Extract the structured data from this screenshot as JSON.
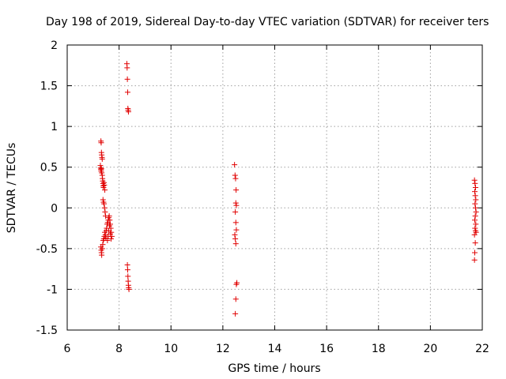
{
  "chart_data": {
    "type": "scatter",
    "title": "Day 198 of 2019, Sidereal Day-to-day VTEC variation (SDTVAR) for receiver ters",
    "xlabel": "GPS time / hours",
    "ylabel": "SDTVAR / TECUs",
    "xlim": [
      6,
      22
    ],
    "ylim": [
      -1.5,
      2
    ],
    "xticks": [
      "6",
      "8",
      "10",
      "12",
      "14",
      "16",
      "18",
      "20",
      "22"
    ],
    "yticks": [
      "2",
      "1.5",
      "1",
      "0.5",
      "0",
      "-0.5",
      "-1",
      "-1.5"
    ],
    "grid": true,
    "marker": "+",
    "marker_color": "#e00000",
    "series": [
      {
        "name": "SDTVAR",
        "points": [
          [
            7.3,
            0.82
          ],
          [
            7.31,
            0.8
          ],
          [
            7.32,
            0.68
          ],
          [
            7.33,
            0.65
          ],
          [
            7.34,
            0.62
          ],
          [
            7.35,
            0.6
          ],
          [
            7.28,
            0.52
          ],
          [
            7.29,
            0.49
          ],
          [
            7.3,
            0.47
          ],
          [
            7.31,
            0.45
          ],
          [
            7.32,
            0.48
          ],
          [
            7.33,
            0.43
          ],
          [
            7.35,
            0.4
          ],
          [
            7.36,
            0.36
          ],
          [
            7.37,
            0.33
          ],
          [
            7.38,
            0.3
          ],
          [
            7.39,
            0.27
          ],
          [
            7.4,
            0.25
          ],
          [
            7.42,
            0.31
          ],
          [
            7.43,
            0.28
          ],
          [
            7.45,
            0.22
          ],
          [
            7.38,
            0.1
          ],
          [
            7.4,
            0.07
          ],
          [
            7.42,
            0.05
          ],
          [
            7.44,
            0.0
          ],
          [
            7.46,
            -0.05
          ],
          [
            7.48,
            -0.1
          ],
          [
            7.3,
            -0.48
          ],
          [
            7.31,
            -0.52
          ],
          [
            7.32,
            -0.55
          ],
          [
            7.33,
            -0.58
          ],
          [
            7.35,
            -0.5
          ],
          [
            7.37,
            -0.45
          ],
          [
            7.39,
            -0.4
          ],
          [
            7.41,
            -0.38
          ],
          [
            7.43,
            -0.35
          ],
          [
            7.45,
            -0.3
          ],
          [
            7.47,
            -0.33
          ],
          [
            7.49,
            -0.37
          ],
          [
            7.5,
            -0.28
          ],
          [
            7.52,
            -0.25
          ],
          [
            7.54,
            -0.2
          ],
          [
            7.56,
            -0.18
          ],
          [
            7.58,
            -0.15
          ],
          [
            7.6,
            -0.12
          ],
          [
            7.62,
            -0.1
          ],
          [
            7.64,
            -0.15
          ],
          [
            7.66,
            -0.2
          ],
          [
            7.68,
            -0.25
          ],
          [
            7.7,
            -0.3
          ],
          [
            7.72,
            -0.35
          ],
          [
            7.55,
            -0.4
          ],
          [
            7.58,
            -0.35
          ],
          [
            7.6,
            -0.28
          ],
          [
            7.63,
            -0.22
          ],
          [
            7.66,
            -0.32
          ],
          [
            7.69,
            -0.38
          ],
          [
            8.3,
            1.77
          ],
          [
            8.31,
            1.72
          ],
          [
            8.32,
            1.58
          ],
          [
            8.33,
            1.42
          ],
          [
            8.34,
            1.22
          ],
          [
            8.35,
            1.2
          ],
          [
            8.36,
            1.18
          ],
          [
            8.32,
            -0.7
          ],
          [
            8.33,
            -0.76
          ],
          [
            8.34,
            -0.84
          ],
          [
            8.35,
            -0.9
          ],
          [
            8.36,
            -0.95
          ],
          [
            8.37,
            -0.98
          ],
          [
            8.38,
            -1.0
          ],
          [
            12.45,
            0.53
          ],
          [
            12.47,
            0.4
          ],
          [
            12.49,
            0.36
          ],
          [
            12.51,
            0.22
          ],
          [
            12.5,
            0.06
          ],
          [
            12.52,
            0.03
          ],
          [
            12.48,
            -0.05
          ],
          [
            12.5,
            -0.18
          ],
          [
            12.52,
            -0.27
          ],
          [
            12.46,
            -0.33
          ],
          [
            12.48,
            -0.38
          ],
          [
            12.5,
            -0.44
          ],
          [
            12.54,
            -0.92
          ],
          [
            12.52,
            -0.94
          ],
          [
            12.5,
            -1.12
          ],
          [
            12.48,
            -1.3
          ],
          [
            21.7,
            0.34
          ],
          [
            21.72,
            0.3
          ],
          [
            21.74,
            0.25
          ],
          [
            21.71,
            0.2
          ],
          [
            21.73,
            0.15
          ],
          [
            21.75,
            0.1
          ],
          [
            21.72,
            0.05
          ],
          [
            21.74,
            0.0
          ],
          [
            21.76,
            -0.05
          ],
          [
            21.73,
            -0.1
          ],
          [
            21.71,
            -0.15
          ],
          [
            21.75,
            -0.2
          ],
          [
            21.72,
            -0.25
          ],
          [
            21.74,
            -0.28
          ],
          [
            21.76,
            -0.3
          ],
          [
            21.7,
            -0.33
          ],
          [
            21.73,
            -0.43
          ],
          [
            21.71,
            -0.55
          ],
          [
            21.7,
            -0.64
          ]
        ]
      }
    ]
  }
}
